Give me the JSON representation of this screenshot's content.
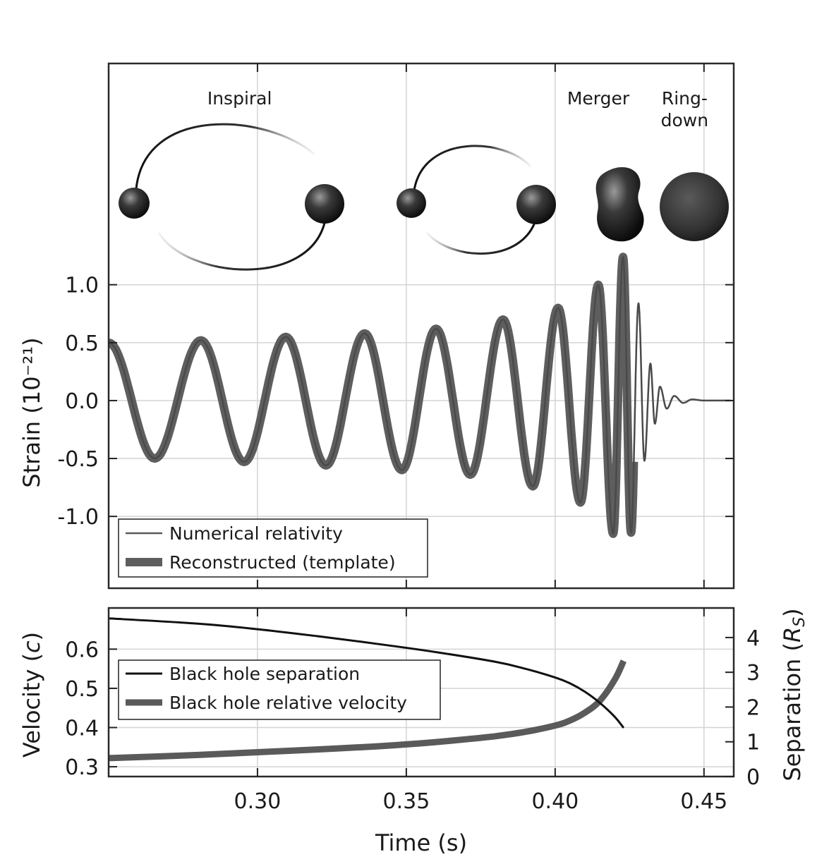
{
  "chart_data": [
    {
      "type": "line",
      "panel": "strain",
      "ylabel": "Strain (10⁻²¹)",
      "xlabel": "",
      "xlim": [
        0.25,
        0.46
      ],
      "ylim": [
        -1.62,
        2.91
      ],
      "yticks": [
        1.0,
        0.5,
        0.0,
        -0.5,
        -1.0
      ],
      "ytick_labels": [
        "1.0",
        "0.5",
        "0.0",
        "-0.5",
        "-1.0"
      ],
      "grid": true,
      "legend_position": "bottom-left",
      "phase_labels": [
        {
          "text": "Inspiral",
          "x": 0.294
        },
        {
          "text": "Merger",
          "x": 0.4145
        },
        {
          "text": "Ring-",
          "x": 0.4435
        },
        {
          "text": "down",
          "x": 0.4435
        }
      ],
      "waveform_peaks": [
        [
          0.25,
          0.5
        ],
        [
          0.2655,
          -0.5
        ],
        [
          0.281,
          0.52
        ],
        [
          0.2955,
          -0.53
        ],
        [
          0.3095,
          0.55
        ],
        [
          0.323,
          -0.56
        ],
        [
          0.336,
          0.58
        ],
        [
          0.3485,
          -0.6
        ],
        [
          0.36,
          0.62
        ],
        [
          0.3715,
          -0.64
        ],
        [
          0.3825,
          0.7
        ],
        [
          0.3925,
          -0.74
        ],
        [
          0.401,
          0.8
        ],
        [
          0.4085,
          -0.88
        ],
        [
          0.4145,
          1.0
        ],
        [
          0.4195,
          -1.15
        ],
        [
          0.4228,
          1.24
        ],
        [
          0.4255,
          -1.14
        ],
        [
          0.428,
          0.84
        ],
        [
          0.43,
          -0.52
        ],
        [
          0.432,
          0.32
        ],
        [
          0.4335,
          -0.2
        ],
        [
          0.4352,
          0.12
        ],
        [
          0.4375,
          -0.07
        ],
        [
          0.44,
          0.04
        ],
        [
          0.443,
          -0.02
        ],
        [
          0.446,
          0.01
        ],
        [
          0.45,
          0.0
        ],
        [
          0.459,
          0.0
        ]
      ],
      "series": [
        {
          "name": "Numerical relativity",
          "style": "thin",
          "color": "#5a5a5a"
        },
        {
          "name": "Reconstructed (template)",
          "style": "thick",
          "color": "#5e5e5e"
        }
      ]
    },
    {
      "type": "line",
      "panel": "velocity-separation",
      "xlabel": "Time (s)",
      "ylabel": "Velocity (c)",
      "ylabel_right": "Separation (R_S)",
      "xlim": [
        0.25,
        0.46
      ],
      "xticks": [
        0.3,
        0.35,
        0.4,
        0.45
      ],
      "xtick_labels": [
        "0.30",
        "0.35",
        "0.40",
        "0.45"
      ],
      "ylim": [
        0.275,
        0.705
      ],
      "yticks": [
        0.6,
        0.5,
        0.4,
        0.3
      ],
      "ytick_labels": [
        "0.6",
        "0.5",
        "0.4",
        "0.3"
      ],
      "ylim_right": [
        0,
        4.85
      ],
      "yticks_right": [
        4,
        3,
        2,
        1,
        0
      ],
      "ytick_labels_right": [
        "4",
        "3",
        "2",
        "1",
        "0"
      ],
      "grid": true,
      "legend_position": "top-left",
      "series": [
        {
          "name": "Black hole separation",
          "axis": "right",
          "color": "#111111",
          "x": [
            0.25,
            0.28,
            0.3,
            0.32,
            0.34,
            0.36,
            0.38,
            0.39,
            0.4,
            0.405,
            0.41,
            0.415,
            0.42,
            0.423
          ],
          "y": [
            4.55,
            4.4,
            4.24,
            4.04,
            3.82,
            3.58,
            3.3,
            3.1,
            2.85,
            2.68,
            2.44,
            2.12,
            1.72,
            1.4
          ]
        },
        {
          "name": "Black hole relative velocity",
          "axis": "left",
          "color": "#5a5a5a",
          "x": [
            0.25,
            0.28,
            0.3,
            0.32,
            0.34,
            0.35,
            0.36,
            0.37,
            0.38,
            0.39,
            0.4,
            0.405,
            0.41,
            0.415,
            0.42,
            0.423
          ],
          "y": [
            0.322,
            0.33,
            0.337,
            0.344,
            0.352,
            0.357,
            0.363,
            0.37,
            0.378,
            0.389,
            0.405,
            0.418,
            0.438,
            0.468,
            0.522,
            0.57
          ]
        }
      ]
    }
  ],
  "legend_upper": {
    "items": [
      "Numerical relativity",
      "Reconstructed (template)"
    ]
  },
  "legend_lower": {
    "items": [
      "Black hole separation",
      "Black hole relative velocity"
    ]
  }
}
